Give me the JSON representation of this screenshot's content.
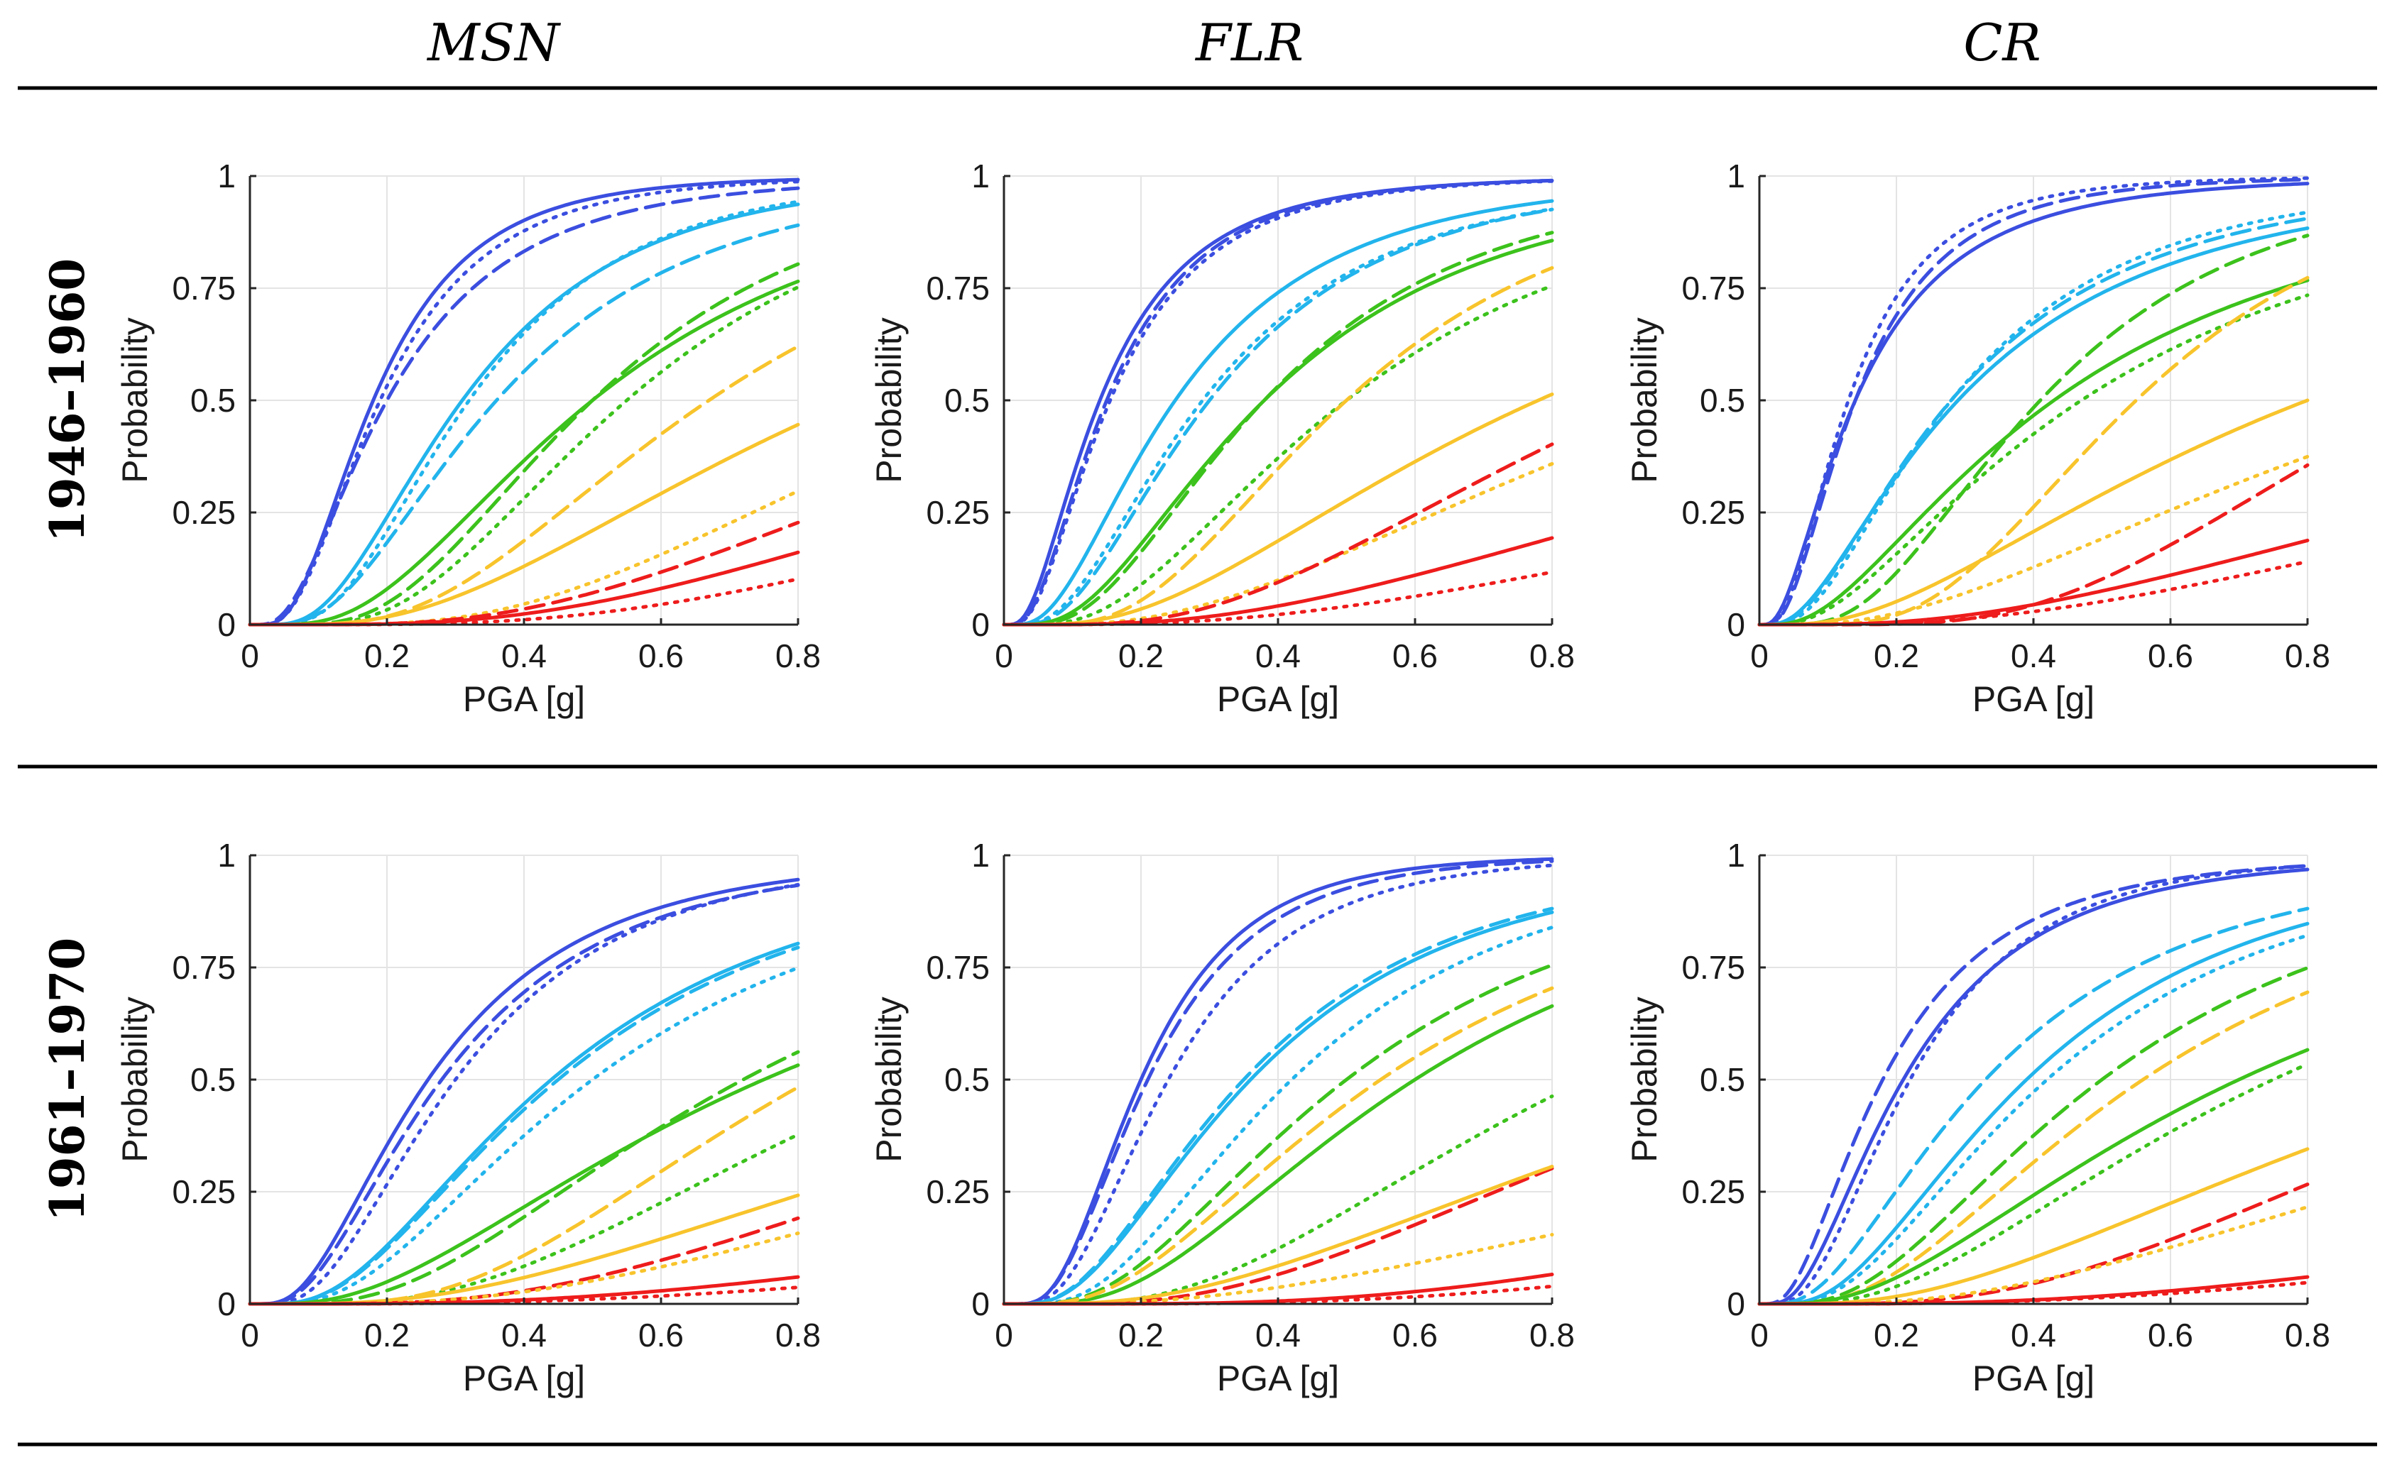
{
  "columns": [
    "MSN",
    "FLR",
    "CR"
  ],
  "rows": [
    "1946–1960",
    "1961–1970"
  ],
  "colors": {
    "DS1": "#3b4ee0",
    "DS2": "#22b4ec",
    "DS3": "#3cc21c",
    "DS4": "#f8c42c",
    "DS5": "#ee1c1c"
  },
  "chart_data": [
    {
      "type": "line",
      "row": "1946–1960",
      "column": "MSN",
      "xlabel": "PGA [g]",
      "ylabel": "Probability",
      "xlim": [
        0,
        0.8
      ],
      "ylim": [
        0,
        1
      ],
      "xticks": [
        "0",
        "0.2",
        "0.4",
        "0.6",
        "0.8"
      ],
      "yticks": [
        "0",
        "0.25",
        "0.5",
        "0.75",
        "1"
      ],
      "series": [
        {
          "color": "DS1",
          "style": "solid",
          "median": 0.18,
          "beta": 0.62
        },
        {
          "color": "DS1",
          "style": "dotted",
          "median": 0.19,
          "beta": 0.64
        },
        {
          "color": "DS1",
          "style": "dashed",
          "median": 0.2,
          "beta": 0.72
        },
        {
          "color": "DS2",
          "style": "solid",
          "median": 0.31,
          "beta": 0.62
        },
        {
          "color": "DS2",
          "style": "dotted",
          "median": 0.32,
          "beta": 0.58
        },
        {
          "color": "DS2",
          "style": "dashed",
          "median": 0.36,
          "beta": 0.65
        },
        {
          "color": "DS3",
          "style": "solid",
          "median": 0.5,
          "beta": 0.65
        },
        {
          "color": "DS3",
          "style": "dashed",
          "median": 0.5,
          "beta": 0.55
        },
        {
          "color": "DS3",
          "style": "dotted",
          "median": 0.55,
          "beta": 0.55
        },
        {
          "color": "DS4",
          "style": "dashed",
          "median": 0.67,
          "beta": 0.58
        },
        {
          "color": "DS4",
          "style": "solid",
          "median": 0.88,
          "beta": 0.7
        },
        {
          "color": "DS4",
          "style": "dotted",
          "median": 1.1,
          "beta": 0.6
        },
        {
          "color": "DS5",
          "style": "dashed",
          "median": 1.3,
          "beta": 0.65
        },
        {
          "color": "DS5",
          "style": "solid",
          "median": 1.6,
          "beta": 0.7
        },
        {
          "color": "DS5",
          "style": "dotted",
          "median": 1.9,
          "beta": 0.68
        }
      ]
    },
    {
      "type": "line",
      "row": "1946–1960",
      "column": "FLR",
      "xlabel": "PGA [g]",
      "ylabel": "Probability",
      "xlim": [
        0,
        0.8
      ],
      "ylim": [
        0,
        1
      ],
      "xticks": [
        "0",
        "0.2",
        "0.4",
        "0.6",
        "0.8"
      ],
      "yticks": [
        "0",
        "0.25",
        "0.5",
        "0.75",
        "1"
      ],
      "series": [
        {
          "color": "DS1",
          "style": "solid",
          "median": 0.14,
          "beta": 0.75
        },
        {
          "color": "DS1",
          "style": "dashed",
          "median": 0.15,
          "beta": 0.72
        },
        {
          "color": "DS1",
          "style": "dotted",
          "median": 0.155,
          "beta": 0.72
        },
        {
          "color": "DS2",
          "style": "solid",
          "median": 0.25,
          "beta": 0.73
        },
        {
          "color": "DS2",
          "style": "dotted",
          "median": 0.29,
          "beta": 0.7
        },
        {
          "color": "DS2",
          "style": "dashed",
          "median": 0.3,
          "beta": 0.68
        },
        {
          "color": "DS3",
          "style": "dashed",
          "median": 0.38,
          "beta": 0.65
        },
        {
          "color": "DS3",
          "style": "solid",
          "median": 0.38,
          "beta": 0.7
        },
        {
          "color": "DS3",
          "style": "dotted",
          "median": 0.5,
          "beta": 0.68
        },
        {
          "color": "DS4",
          "style": "dashed",
          "median": 0.5,
          "beta": 0.57
        },
        {
          "color": "DS4",
          "style": "solid",
          "median": 0.78,
          "beta": 0.75
        },
        {
          "color": "DS4",
          "style": "dotted",
          "median": 1.05,
          "beta": 0.75
        },
        {
          "color": "DS5",
          "style": "dashed",
          "median": 0.94,
          "beta": 0.65
        },
        {
          "color": "DS5",
          "style": "solid",
          "median": 1.6,
          "beta": 0.8
        },
        {
          "color": "DS5",
          "style": "dotted",
          "median": 2.2,
          "beta": 0.85
        }
      ]
    },
    {
      "type": "line",
      "row": "1946–1960",
      "column": "CR",
      "xlabel": "PGA [g]",
      "ylabel": "Probability",
      "xlim": [
        0,
        0.8
      ],
      "ylim": [
        0,
        1
      ],
      "xticks": [
        "0",
        "0.2",
        "0.4",
        "0.6",
        "0.8"
      ],
      "yticks": [
        "0",
        "0.25",
        "0.5",
        "0.75",
        "1"
      ],
      "series": [
        {
          "color": "DS1",
          "style": "solid",
          "median": 0.14,
          "beta": 0.82
        },
        {
          "color": "DS1",
          "style": "dashed",
          "median": 0.14,
          "beta": 0.72
        },
        {
          "color": "DS1",
          "style": "dotted",
          "median": 0.13,
          "beta": 0.7
        },
        {
          "color": "DS2",
          "style": "solid",
          "median": 0.29,
          "beta": 0.85
        },
        {
          "color": "DS2",
          "style": "dashed",
          "median": 0.28,
          "beta": 0.8
        },
        {
          "color": "DS2",
          "style": "dotted",
          "median": 0.28,
          "beta": 0.75
        },
        {
          "color": "DS3",
          "style": "solid",
          "median": 0.43,
          "beta": 0.85
        },
        {
          "color": "DS3",
          "style": "dashed",
          "median": 0.41,
          "beta": 0.6
        },
        {
          "color": "DS3",
          "style": "dotted",
          "median": 0.47,
          "beta": 0.85
        },
        {
          "color": "DS4",
          "style": "dashed",
          "median": 0.55,
          "beta": 0.5
        },
        {
          "color": "DS4",
          "style": "solid",
          "median": 0.8,
          "beta": 0.85
        },
        {
          "color": "DS4",
          "style": "dotted",
          "median": 1.05,
          "beta": 0.85
        },
        {
          "color": "DS5",
          "style": "dashed",
          "median": 0.97,
          "beta": 0.52
        },
        {
          "color": "DS5",
          "style": "solid",
          "median": 1.7,
          "beta": 0.85
        },
        {
          "color": "DS5",
          "style": "dotted",
          "median": 2.0,
          "beta": 0.85
        }
      ]
    },
    {
      "type": "line",
      "row": "1961–1970",
      "column": "MSN",
      "xlabel": "PGA [g]",
      "ylabel": "Probability",
      "xlim": [
        0,
        0.8
      ],
      "ylim": [
        0,
        1
      ],
      "xticks": [
        "0",
        "0.2",
        "0.4",
        "0.6",
        "0.8"
      ],
      "yticks": [
        "0",
        "0.25",
        "0.5",
        "0.75",
        "1"
      ],
      "series": [
        {
          "color": "DS1",
          "style": "solid",
          "median": 0.26,
          "beta": 0.7
        },
        {
          "color": "DS1",
          "style": "dashed",
          "median": 0.28,
          "beta": 0.7
        },
        {
          "color": "DS1",
          "style": "dotted",
          "median": 0.3,
          "beta": 0.65
        },
        {
          "color": "DS2",
          "style": "solid",
          "median": 0.44,
          "beta": 0.7
        },
        {
          "color": "DS2",
          "style": "dashed",
          "median": 0.45,
          "beta": 0.7
        },
        {
          "color": "DS2",
          "style": "dotted",
          "median": 0.5,
          "beta": 0.7
        },
        {
          "color": "DS3",
          "style": "dashed",
          "median": 0.72,
          "beta": 0.68
        },
        {
          "color": "DS3",
          "style": "solid",
          "median": 0.75,
          "beta": 0.8
        },
        {
          "color": "DS3",
          "style": "dotted",
          "median": 0.98,
          "beta": 0.65
        },
        {
          "color": "DS4",
          "style": "dashed",
          "median": 0.82,
          "beta": 0.58
        },
        {
          "color": "DS4",
          "style": "solid",
          "median": 1.4,
          "beta": 0.8
        },
        {
          "color": "DS5",
          "style": "dashed",
          "median": 1.45,
          "beta": 0.68
        },
        {
          "color": "DS4",
          "style": "dotted",
          "median": 1.7,
          "beta": 0.75
        },
        {
          "color": "DS5",
          "style": "solid",
          "median": 3.0,
          "beta": 0.85
        },
        {
          "color": "DS5",
          "style": "dotted",
          "median": 4.0,
          "beta": 0.9
        }
      ]
    },
    {
      "type": "line",
      "row": "1961–1970",
      "column": "FLR",
      "xlabel": "PGA [g]",
      "ylabel": "Probability",
      "xlim": [
        0,
        0.8
      ],
      "ylim": [
        0,
        1
      ],
      "xticks": [
        "0",
        "0.2",
        "0.4",
        "0.6",
        "0.8"
      ],
      "yticks": [
        "0",
        "0.25",
        "0.5",
        "0.75",
        "1"
      ],
      "series": [
        {
          "color": "DS1",
          "style": "solid",
          "median": 0.2,
          "beta": 0.58
        },
        {
          "color": "DS1",
          "style": "dashed",
          "median": 0.21,
          "beta": 0.6
        },
        {
          "color": "DS1",
          "style": "dotted",
          "median": 0.24,
          "beta": 0.6
        },
        {
          "color": "DS2",
          "style": "solid",
          "median": 0.36,
          "beta": 0.7
        },
        {
          "color": "DS2",
          "style": "dashed",
          "median": 0.35,
          "beta": 0.7
        },
        {
          "color": "DS2",
          "style": "dotted",
          "median": 0.42,
          "beta": 0.65
        },
        {
          "color": "DS3",
          "style": "dashed",
          "median": 0.5,
          "beta": 0.68
        },
        {
          "color": "DS3",
          "style": "solid",
          "median": 0.6,
          "beta": 0.68
        },
        {
          "color": "DS4",
          "style": "dashed",
          "median": 0.55,
          "beta": 0.7
        },
        {
          "color": "DS3",
          "style": "dotted",
          "median": 0.85,
          "beta": 0.65
        },
        {
          "color": "DS5",
          "style": "dashed",
          "median": 1.15,
          "beta": 0.7
        },
        {
          "color": "DS4",
          "style": "solid",
          "median": 1.2,
          "beta": 0.8
        },
        {
          "color": "DS4",
          "style": "dotted",
          "median": 2.0,
          "beta": 0.9
        },
        {
          "color": "DS5",
          "style": "solid",
          "median": 2.3,
          "beta": 0.7
        },
        {
          "color": "DS5",
          "style": "dotted",
          "median": 3.0,
          "beta": 0.75
        }
      ]
    },
    {
      "type": "line",
      "row": "1961–1970",
      "column": "CR",
      "xlabel": "PGA [g]",
      "ylabel": "Probability",
      "xlim": [
        0,
        0.8
      ],
      "ylim": [
        0,
        1
      ],
      "xticks": [
        "0",
        "0.2",
        "0.4",
        "0.6",
        "0.8"
      ],
      "yticks": [
        "0",
        "0.25",
        "0.5",
        "0.75",
        "1"
      ],
      "series": [
        {
          "color": "DS1",
          "style": "solid",
          "median": 0.21,
          "beta": 0.72
        },
        {
          "color": "DS1",
          "style": "dashed",
          "median": 0.18,
          "beta": 0.75
        },
        {
          "color": "DS1",
          "style": "dotted",
          "median": 0.22,
          "beta": 0.65
        },
        {
          "color": "DS2",
          "style": "dashed",
          "median": 0.33,
          "beta": 0.75
        },
        {
          "color": "DS2",
          "style": "solid",
          "median": 0.39,
          "beta": 0.7
        },
        {
          "color": "DS2",
          "style": "dotted",
          "median": 0.42,
          "beta": 0.7
        },
        {
          "color": "DS3",
          "style": "dashed",
          "median": 0.5,
          "beta": 0.7
        },
        {
          "color": "DS3",
          "style": "dotted",
          "median": 0.75,
          "beta": 0.75
        },
        {
          "color": "DS4",
          "style": "dashed",
          "median": 0.56,
          "beta": 0.7
        },
        {
          "color": "DS3",
          "style": "solid",
          "median": 0.7,
          "beta": 0.8
        },
        {
          "color": "DS5",
          "style": "dashed",
          "median": 1.2,
          "beta": 0.65
        },
        {
          "color": "DS4",
          "style": "solid",
          "median": 1.1,
          "beta": 0.8
        },
        {
          "color": "DS4",
          "style": "dotted",
          "median": 1.5,
          "beta": 0.8
        },
        {
          "color": "DS5",
          "style": "solid",
          "median": 3.0,
          "beta": 0.85
        },
        {
          "color": "DS5",
          "style": "dotted",
          "median": 3.6,
          "beta": 0.9
        }
      ]
    }
  ]
}
